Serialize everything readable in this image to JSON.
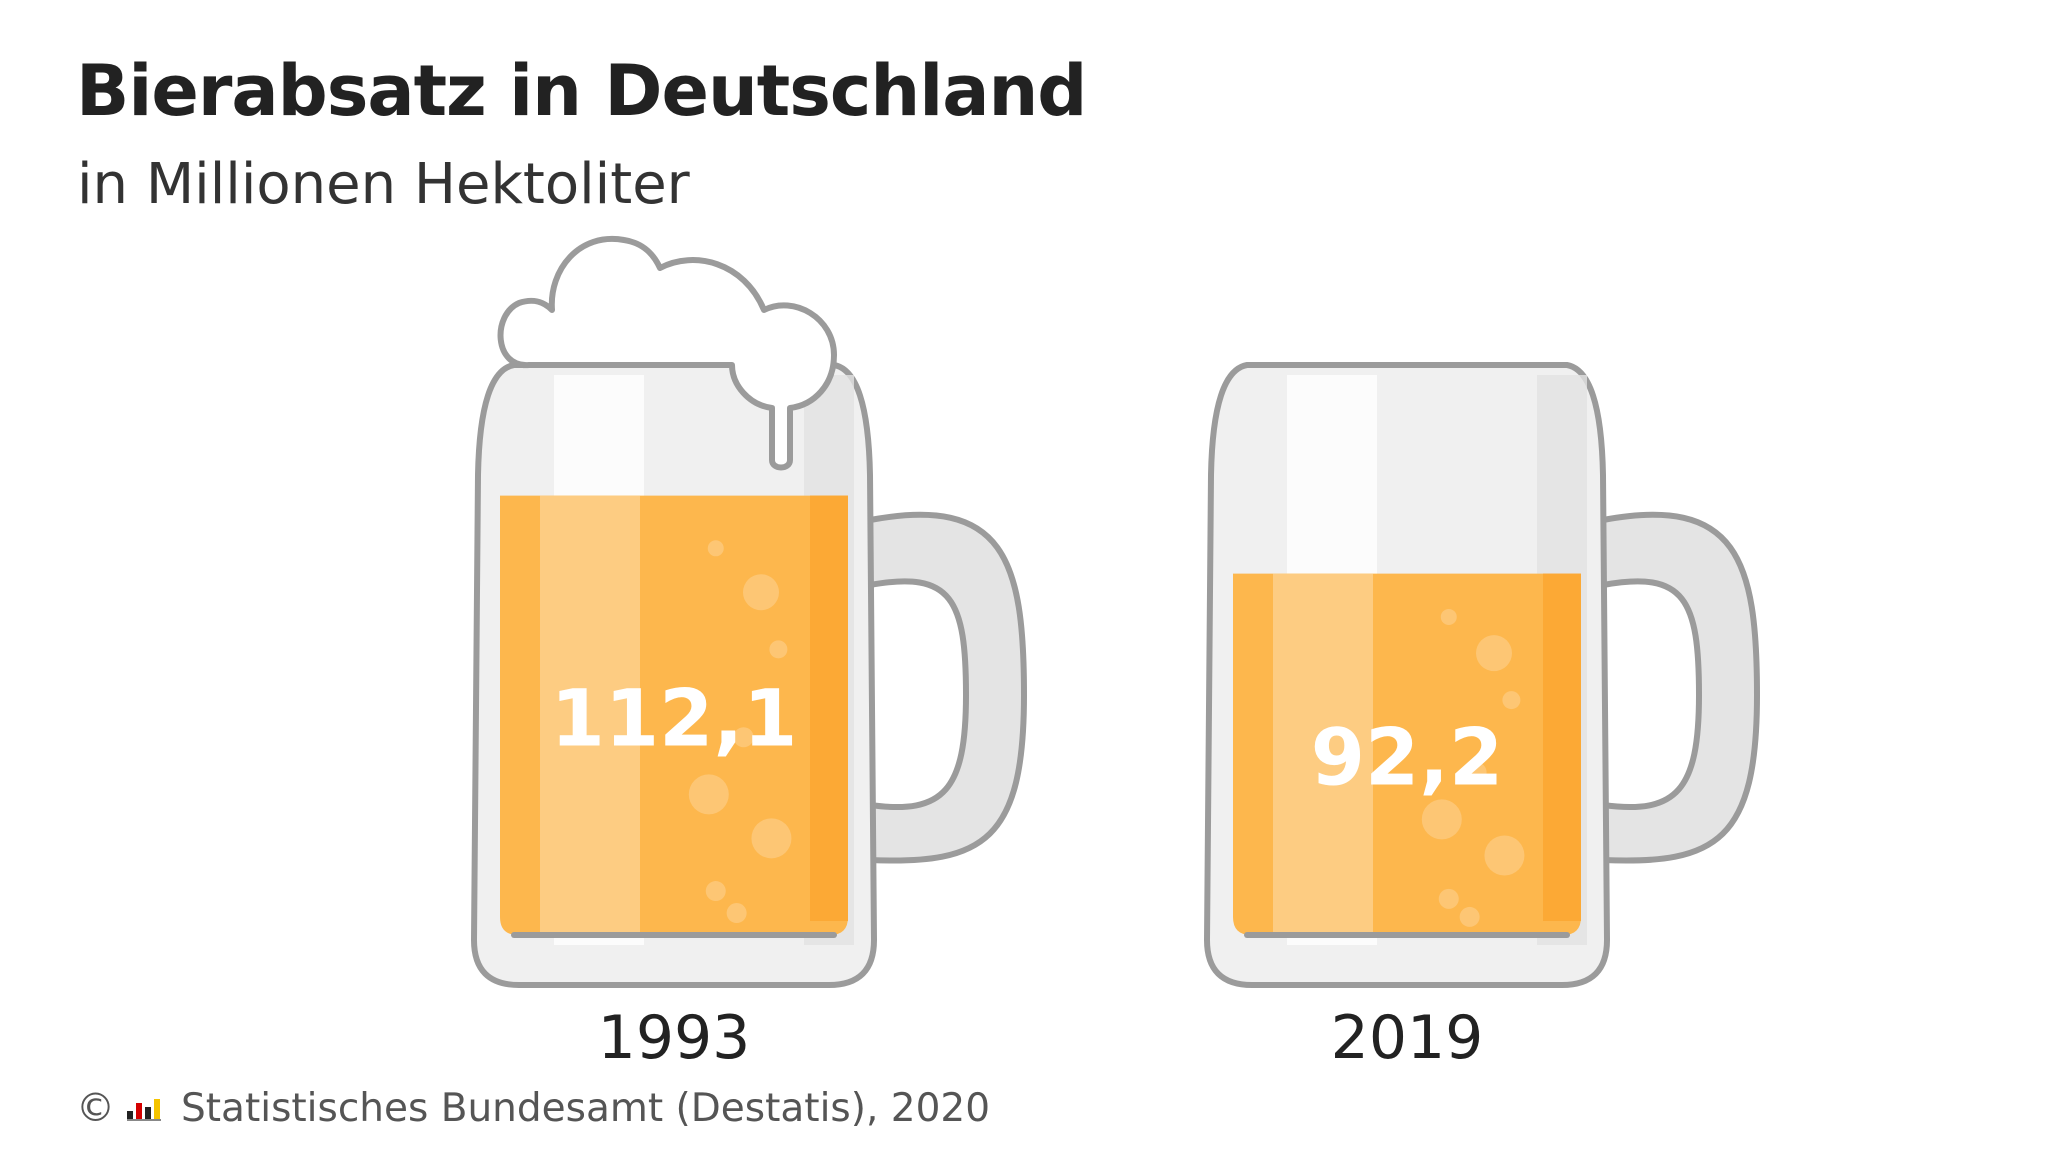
{
  "header": {
    "title": "Bierabsatz in Deutschland",
    "subtitle": "in Millionen Hektoliter"
  },
  "footer": {
    "copyright_symbol": "©",
    "source": "Statistisches Bundesamt (Destatis), 2020"
  },
  "colors": {
    "beer_main": "#fdb74d",
    "beer_light": "#fdcc82",
    "beer_dark": "#fca935",
    "glass_outline": "#9b9b9b",
    "glass_fill": "#f0f0f0",
    "foam": "#ffffff",
    "value_text": "#ffffff"
  },
  "chart_data": {
    "type": "bar",
    "title": "Bierabsatz in Deutschland",
    "subtitle": "in Millionen Hektoliter",
    "categories": [
      "1993",
      "2019"
    ],
    "series": [
      {
        "values": [
          112.1,
          92.2
        ]
      }
    ],
    "value_labels": [
      "112,1",
      "92,2"
    ],
    "ylim": [
      0,
      125
    ],
    "grid": false
  }
}
